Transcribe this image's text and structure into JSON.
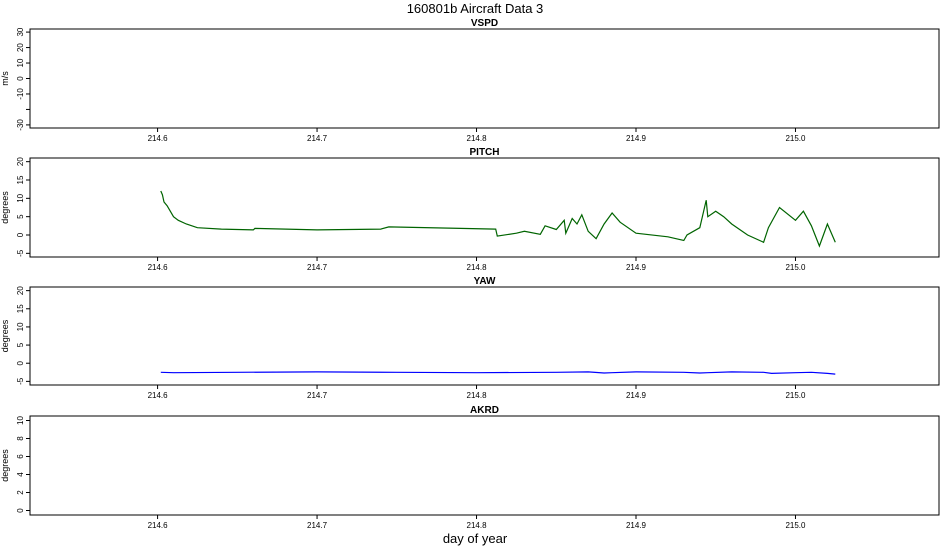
{
  "chart_data": {
    "type": "line",
    "title": "160801b   Aircraft Data 3",
    "xlabel": "day of year",
    "xlim": [
      214.52,
      215.09
    ],
    "xticks": [
      214.6,
      214.7,
      214.8,
      214.9,
      215.0
    ],
    "xtick_labels": [
      "214.6",
      "214.7",
      "214.8",
      "214.9",
      "215.0"
    ],
    "panels": [
      {
        "title": "VSPD",
        "ylabel": "m/s",
        "ylim": [
          -32,
          32
        ],
        "yticks": [
          -30,
          -20,
          -10,
          0,
          10,
          20,
          30
        ],
        "ytick_labels": [
          "-30",
          "",
          "-10",
          "0",
          "10",
          "20",
          "30"
        ],
        "series": [
          {
            "color": "#000000",
            "x": [],
            "y": []
          }
        ]
      },
      {
        "title": "PITCH",
        "ylabel": "degrees",
        "ylim": [
          -6,
          21
        ],
        "yticks": [
          -5,
          0,
          5,
          10,
          15,
          20
        ],
        "ytick_labels": [
          "-5",
          "0",
          "5",
          "10",
          "15",
          "20"
        ],
        "series": [
          {
            "color": "#006400",
            "x": [
              214.602,
              214.603,
              214.604,
              214.606,
              214.608,
              214.61,
              214.613,
              214.618,
              214.625,
              214.64,
              214.66,
              214.661,
              214.7,
              214.74,
              214.745,
              214.79,
              214.812,
              214.813,
              214.825,
              214.83,
              214.84,
              214.843,
              214.85,
              214.855,
              214.856,
              214.86,
              214.863,
              214.866,
              214.87,
              214.875,
              214.88,
              214.885,
              214.89,
              214.9,
              214.92,
              214.93,
              214.932,
              214.94,
              214.944,
              214.945,
              214.95,
              214.955,
              214.96,
              214.97,
              214.98,
              214.983,
              214.99,
              215.0,
              215.005,
              215.01,
              215.015,
              215.02,
              215.025
            ],
            "y": [
              12,
              11,
              9,
              8,
              6.5,
              5,
              4,
              3,
              2,
              1.6,
              1.4,
              1.8,
              1.4,
              1.6,
              2.2,
              1.8,
              1.6,
              -0.3,
              0.5,
              1.0,
              0.2,
              2.5,
              1.5,
              4.0,
              0.5,
              4.5,
              3.0,
              5.5,
              1.0,
              -1.0,
              3.0,
              6.0,
              3.5,
              0.5,
              -0.5,
              -1.5,
              0.0,
              2.0,
              9.5,
              5.0,
              6.5,
              5.0,
              3.0,
              0.0,
              -2.0,
              2.0,
              7.5,
              4.0,
              6.5,
              2.5,
              -3.0,
              3.0,
              -2.0
            ]
          }
        ]
      },
      {
        "title": "YAW",
        "ylabel": "degrees",
        "ylim": [
          -6,
          21
        ],
        "yticks": [
          -5,
          0,
          5,
          10,
          15,
          20
        ],
        "ytick_labels": [
          "-5",
          "0",
          "5",
          "10",
          "15",
          "20"
        ],
        "series": [
          {
            "color": "#0000ff",
            "x": [
              214.602,
              214.61,
              214.65,
              214.7,
              214.75,
              214.8,
              214.85,
              214.87,
              214.88,
              214.885,
              214.9,
              214.93,
              214.94,
              214.945,
              214.96,
              214.98,
              214.985,
              215.0,
              215.01,
              215.02,
              215.025
            ],
            "y": [
              -2.5,
              -2.6,
              -2.5,
              -2.4,
              -2.5,
              -2.6,
              -2.5,
              -2.4,
              -2.7,
              -2.6,
              -2.4,
              -2.5,
              -2.7,
              -2.6,
              -2.4,
              -2.5,
              -2.8,
              -2.6,
              -2.5,
              -2.8,
              -3.0
            ]
          }
        ]
      },
      {
        "title": "AKRD",
        "ylabel": "degrees",
        "ylim": [
          -0.5,
          10.5
        ],
        "yticks": [
          0,
          2,
          4,
          6,
          8,
          10
        ],
        "ytick_labels": [
          "0",
          "2",
          "4",
          "6",
          "8",
          "10"
        ],
        "series": [
          {
            "color": "#000000",
            "x": [],
            "y": []
          }
        ]
      }
    ]
  }
}
